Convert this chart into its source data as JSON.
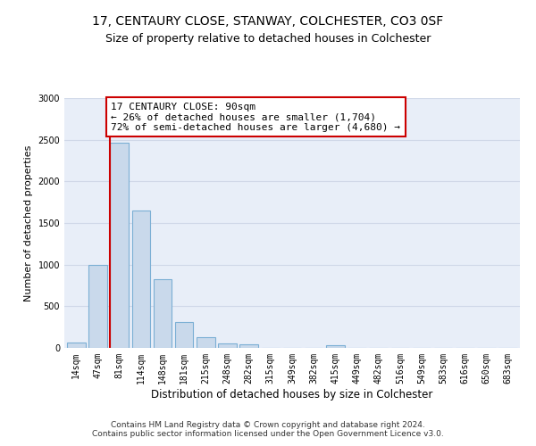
{
  "title1": "17, CENTAURY CLOSE, STANWAY, COLCHESTER, CO3 0SF",
  "title2": "Size of property relative to detached houses in Colchester",
  "xlabel": "Distribution of detached houses by size in Colchester",
  "ylabel": "Number of detached properties",
  "categories": [
    "14sqm",
    "47sqm",
    "81sqm",
    "114sqm",
    "148sqm",
    "181sqm",
    "215sqm",
    "248sqm",
    "282sqm",
    "315sqm",
    "349sqm",
    "382sqm",
    "415sqm",
    "449sqm",
    "482sqm",
    "516sqm",
    "549sqm",
    "583sqm",
    "616sqm",
    "650sqm",
    "683sqm"
  ],
  "values": [
    60,
    1000,
    2460,
    1650,
    830,
    310,
    130,
    55,
    45,
    0,
    0,
    0,
    30,
    0,
    0,
    0,
    0,
    0,
    0,
    0,
    0
  ],
  "bar_color": "#c9d9eb",
  "bar_edgecolor": "#7bafd4",
  "vline_color": "#cc0000",
  "annotation_text": "17 CENTAURY CLOSE: 90sqm\n← 26% of detached houses are smaller (1,704)\n72% of semi-detached houses are larger (4,680) →",
  "annotation_box_color": "#ffffff",
  "annotation_box_edgecolor": "#cc0000",
  "ylim": [
    0,
    3000
  ],
  "yticks": [
    0,
    500,
    1000,
    1500,
    2000,
    2500,
    3000
  ],
  "grid_color": "#d0d8e8",
  "background_color": "#e8eef8",
  "footer1": "Contains HM Land Registry data © Crown copyright and database right 2024.",
  "footer2": "Contains public sector information licensed under the Open Government Licence v3.0.",
  "title1_fontsize": 10,
  "title2_fontsize": 9,
  "xlabel_fontsize": 8.5,
  "ylabel_fontsize": 8,
  "tick_fontsize": 7,
  "footer_fontsize": 6.5,
  "annot_fontsize": 8
}
